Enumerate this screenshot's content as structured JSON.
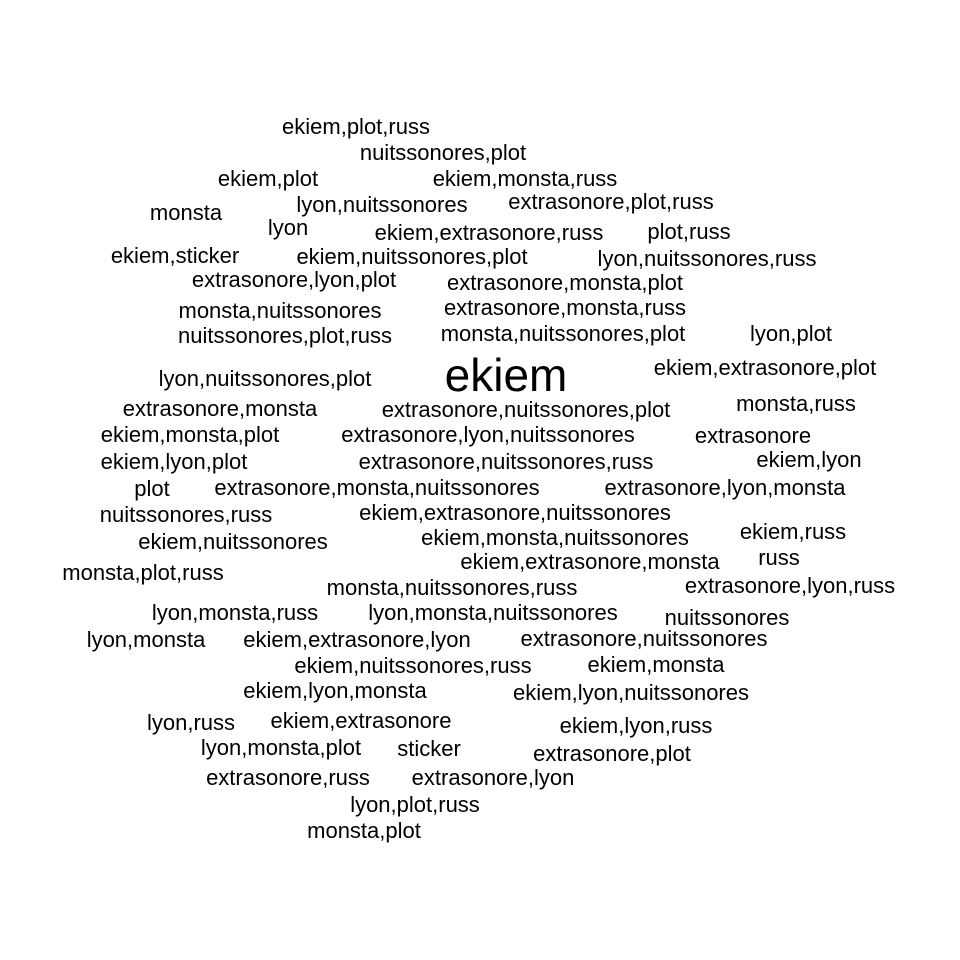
{
  "chart_data": {
    "type": "wordcloud",
    "words": [
      {
        "text": "ekiem",
        "weight": 10
      },
      {
        "text": "ekiem,plot,russ",
        "weight": 1
      },
      {
        "text": "nuitssonores,plot",
        "weight": 1
      },
      {
        "text": "ekiem,plot",
        "weight": 1
      },
      {
        "text": "ekiem,monsta,russ",
        "weight": 1
      },
      {
        "text": "monsta",
        "weight": 1
      },
      {
        "text": "lyon,nuitssonores",
        "weight": 1
      },
      {
        "text": "extrasonore,plot,russ",
        "weight": 1
      },
      {
        "text": "lyon",
        "weight": 1
      },
      {
        "text": "ekiem,extrasonore,russ",
        "weight": 1
      },
      {
        "text": "plot,russ",
        "weight": 1
      },
      {
        "text": "ekiem,sticker",
        "weight": 1
      },
      {
        "text": "ekiem,nuitssonores,plot",
        "weight": 1
      },
      {
        "text": "lyon,nuitssonores,russ",
        "weight": 1
      },
      {
        "text": "extrasonore,lyon,plot",
        "weight": 1
      },
      {
        "text": "extrasonore,monsta,plot",
        "weight": 1
      },
      {
        "text": "monsta,nuitssonores",
        "weight": 1
      },
      {
        "text": "extrasonore,monsta,russ",
        "weight": 1
      },
      {
        "text": "nuitssonores,plot,russ",
        "weight": 1
      },
      {
        "text": "monsta,nuitssonores,plot",
        "weight": 1
      },
      {
        "text": "lyon,plot",
        "weight": 1
      },
      {
        "text": "lyon,nuitssonores,plot",
        "weight": 1
      },
      {
        "text": "ekiem,extrasonore,plot",
        "weight": 1
      },
      {
        "text": "extrasonore,monsta",
        "weight": 1
      },
      {
        "text": "extrasonore,nuitssonores,plot",
        "weight": 1
      },
      {
        "text": "monsta,russ",
        "weight": 1
      },
      {
        "text": "ekiem,monsta,plot",
        "weight": 1
      },
      {
        "text": "extrasonore,lyon,nuitssonores",
        "weight": 1
      },
      {
        "text": "extrasonore",
        "weight": 1
      },
      {
        "text": "ekiem,lyon,plot",
        "weight": 1
      },
      {
        "text": "extrasonore,nuitssonores,russ",
        "weight": 1
      },
      {
        "text": "ekiem,lyon",
        "weight": 1
      },
      {
        "text": "plot",
        "weight": 1
      },
      {
        "text": "extrasonore,monsta,nuitssonores",
        "weight": 1
      },
      {
        "text": "extrasonore,lyon,monsta",
        "weight": 1
      },
      {
        "text": "nuitssonores,russ",
        "weight": 1
      },
      {
        "text": "ekiem,extrasonore,nuitssonores",
        "weight": 1
      },
      {
        "text": "ekiem,russ",
        "weight": 1
      },
      {
        "text": "ekiem,nuitssonores",
        "weight": 1
      },
      {
        "text": "ekiem,monsta,nuitssonores",
        "weight": 1
      },
      {
        "text": "russ",
        "weight": 1
      },
      {
        "text": "ekiem,extrasonore,monsta",
        "weight": 1
      },
      {
        "text": "monsta,plot,russ",
        "weight": 1
      },
      {
        "text": "monsta,nuitssonores,russ",
        "weight": 1
      },
      {
        "text": "extrasonore,lyon,russ",
        "weight": 1
      },
      {
        "text": "lyon,monsta,russ",
        "weight": 1
      },
      {
        "text": "lyon,monsta,nuitssonores",
        "weight": 1
      },
      {
        "text": "nuitssonores",
        "weight": 1
      },
      {
        "text": "lyon,monsta",
        "weight": 1
      },
      {
        "text": "ekiem,extrasonore,lyon",
        "weight": 1
      },
      {
        "text": "extrasonore,nuitssonores",
        "weight": 1
      },
      {
        "text": "ekiem,nuitssonores,russ",
        "weight": 1
      },
      {
        "text": "ekiem,monsta",
        "weight": 1
      },
      {
        "text": "ekiem,lyon,monsta",
        "weight": 1
      },
      {
        "text": "ekiem,lyon,nuitssonores",
        "weight": 1
      },
      {
        "text": "lyon,russ",
        "weight": 1
      },
      {
        "text": "ekiem,extrasonore",
        "weight": 1
      },
      {
        "text": "ekiem,lyon,russ",
        "weight": 1
      },
      {
        "text": "lyon,monsta,plot",
        "weight": 1
      },
      {
        "text": "sticker",
        "weight": 1
      },
      {
        "text": "extrasonore,plot",
        "weight": 1
      },
      {
        "text": "extrasonore,russ",
        "weight": 1
      },
      {
        "text": "extrasonore,lyon",
        "weight": 1
      },
      {
        "text": "lyon,plot,russ",
        "weight": 1
      },
      {
        "text": "monsta,plot",
        "weight": 1
      }
    ]
  }
}
